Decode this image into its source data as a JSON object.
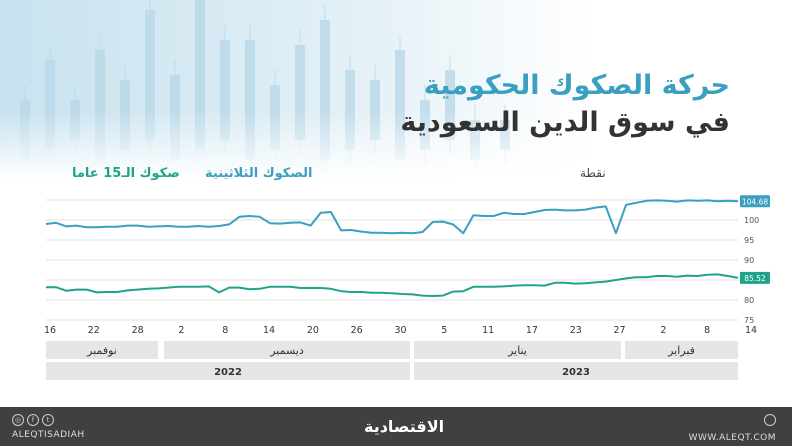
{
  "header": {
    "title_line1": "حركة الصكوك الحكومية",
    "title_line2": "في سوق الدين السعودية"
  },
  "legend": {
    "series_15y": "صكوك الـ15 عاما",
    "series_3y": "الصكوك الثلاثينية",
    "unit": "نقطة"
  },
  "colors": {
    "series_3y": "#3a9fc0",
    "series_15y": "#1fa38a",
    "title_accent": "#3a9fc0",
    "band": "#e6e6e6",
    "grid": "#d9d9d9",
    "footer": "#404040"
  },
  "footer": {
    "left_handle": "ALEQTISADIAH",
    "right_handle": "WWW.ALEQT.COM",
    "logo": "الاقتصادية"
  },
  "chart_data": {
    "type": "line",
    "title": "حركة الصكوك الحكومية في سوق الدين السعودية",
    "ylabel": "نقطة",
    "ylim": [
      75,
      105
    ],
    "y_ticks": [
      105,
      100,
      95,
      90,
      85,
      80,
      75
    ],
    "grid": true,
    "legend_position": "top",
    "x_tick_labels": [
      "16",
      "22",
      "28",
      "2",
      "8",
      "14",
      "20",
      "26",
      "30",
      "5",
      "11",
      "17",
      "23",
      "27",
      "2",
      "8",
      "14"
    ],
    "months": [
      {
        "label": "نوفمبر",
        "year": "2022"
      },
      {
        "label": "ديسمبر",
        "year": "2022"
      },
      {
        "label": "يناير",
        "year": "2023"
      },
      {
        "label": "فبراير",
        "year": "2023"
      }
    ],
    "years": [
      "2022",
      "2023"
    ],
    "series": [
      {
        "name": "الصكوك الثلاثينية",
        "end_label": "104.68",
        "values": [
          99.0,
          99.3,
          98.4,
          98.6,
          98.2,
          98.2,
          98.3,
          98.3,
          98.6,
          98.6,
          98.3,
          98.4,
          98.5,
          98.3,
          98.3,
          98.5,
          98.3,
          98.5,
          98.9,
          100.8,
          101.0,
          100.8,
          99.2,
          99.1,
          99.3,
          99.4,
          98.6,
          101.8,
          102.0,
          97.4,
          97.5,
          97.1,
          96.8,
          96.8,
          96.7,
          96.8,
          96.7,
          97.0,
          99.5,
          99.6,
          98.9,
          96.7,
          101.2,
          101.0,
          101.0,
          101.8,
          101.5,
          101.5,
          102.0,
          102.5,
          102.6,
          102.4,
          102.4,
          102.6,
          103.1,
          103.4,
          96.7,
          103.8,
          104.3,
          104.8,
          104.9,
          104.8,
          104.6,
          104.9,
          104.8,
          104.9,
          104.7,
          104.8,
          104.68
        ]
      },
      {
        "name": "صكوك الـ15 عاما",
        "end_label": "85.52",
        "values": [
          83.2,
          83.2,
          82.3,
          82.6,
          82.6,
          81.9,
          82.0,
          82.0,
          82.4,
          82.6,
          82.8,
          82.9,
          83.1,
          83.3,
          83.3,
          83.3,
          83.4,
          81.9,
          83.1,
          83.1,
          82.7,
          82.8,
          83.3,
          83.3,
          83.3,
          83.0,
          83.0,
          83.0,
          82.8,
          82.2,
          82.0,
          82.0,
          81.8,
          81.8,
          81.7,
          81.5,
          81.4,
          81.1,
          81.0,
          81.1,
          82.1,
          82.2,
          83.3,
          83.3,
          83.3,
          83.4,
          83.6,
          83.7,
          83.7,
          83.6,
          84.3,
          84.3,
          84.1,
          84.2,
          84.4,
          84.6,
          85.0,
          85.4,
          85.7,
          85.7,
          86.0,
          86.0,
          85.8,
          86.1,
          86.0,
          86.3,
          86.4,
          86.0,
          85.52
        ]
      }
    ]
  }
}
